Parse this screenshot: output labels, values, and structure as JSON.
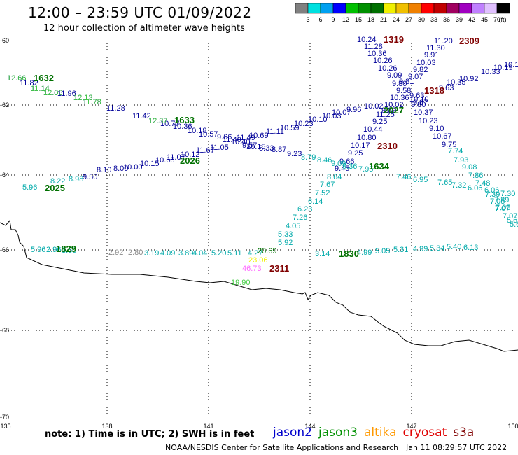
{
  "header": {
    "title": "12:00 – 23:59 UTC 01/09/2022",
    "subtitle": "12 hour collection of altimeter wave heights"
  },
  "colorbar": {
    "colors": [
      "#808080",
      "#00e0e0",
      "#00a0f0",
      "#0000ff",
      "#00c000",
      "#009000",
      "#007000",
      "#f0f000",
      "#f0c000",
      "#f08000",
      "#ff0000",
      "#c00000",
      "#a00060",
      "#a000c0",
      "#c080ff",
      "#e0c0ff",
      "#000000"
    ],
    "ticks": [
      "3",
      "6",
      "9",
      "12",
      "15",
      "18",
      "21",
      "24",
      "27",
      "30",
      "33",
      "36",
      "39",
      "42",
      "45",
      "70",
      "(ft)"
    ]
  },
  "axes": {
    "lat_labels": [
      "-60",
      "-62",
      "-64",
      "-66",
      "-68",
      "-70"
    ],
    "lon_labels": [
      "135",
      "138",
      "141",
      "144",
      "147",
      "150"
    ]
  },
  "satellites": [
    {
      "name": "jason2",
      "color": "#0000cc"
    },
    {
      "name": "jason3",
      "color": "#009000"
    },
    {
      "name": "altika",
      "color": "#ff9900"
    },
    {
      "name": "cryosat",
      "color": "#e00000"
    },
    {
      "name": "s3a",
      "color": "#800000"
    }
  ],
  "passes": [
    {
      "label": "1319",
      "color": "#800000"
    },
    {
      "label": "2309",
      "color": "#800000"
    },
    {
      "label": "1632",
      "color": "#007000"
    },
    {
      "label": "1318",
      "color": "#800000"
    },
    {
      "label": "2027",
      "color": "#007000"
    },
    {
      "label": "1633",
      "color": "#007000"
    },
    {
      "label": "2310",
      "color": "#800000"
    },
    {
      "label": "2026",
      "color": "#007000"
    },
    {
      "label": "1634",
      "color": "#007000"
    },
    {
      "label": "2025",
      "color": "#007000"
    },
    {
      "label": "1829",
      "color": "#007000"
    },
    {
      "label": "1830",
      "color": "#007000"
    },
    {
      "label": "2311",
      "color": "#800000"
    }
  ],
  "track_pass_1319_2310": {
    "color": "#000099",
    "values": [
      "10.24",
      "11.28",
      "10.36",
      "10.26",
      "10.26",
      "9.09",
      "9.80",
      "9.58",
      "10.36",
      "10.02",
      "9.89",
      "11.25",
      "9.25",
      "10.44",
      "10.80",
      "10.17",
      "9.25",
      "9.66",
      "9.45"
    ]
  },
  "track_pass_2309": {
    "color": "#000099",
    "values": [
      "11.20",
      "11.30",
      "9.91",
      "10.03",
      "9.82",
      "9.07",
      "10.10",
      "9.80",
      "10.37",
      "10.23",
      "9.10",
      "10.67",
      "9.75"
    ]
  },
  "track_pass_1318": {
    "color": "#000099",
    "values": [
      "10.17",
      "10.19",
      "10.33",
      "10.92",
      "10.35",
      "9.63"
    ]
  },
  "track_pass_1632": {
    "color": "#000099",
    "values": [
      "12.66",
      "11.82",
      "11.14",
      "12.06",
      "11.96",
      "12.13",
      "11.78",
      "11.28",
      "11.42",
      "12.37",
      "10.77",
      "10.36",
      "10.18",
      "10.57",
      "9.66",
      "10.40",
      "9.57",
      "10.15",
      "8.33",
      "8.87",
      "9.23"
    ]
  },
  "track_pass_1632_light": {
    "color": "#44cc44",
    "values": [
      "12.66",
      "11.14",
      "12.06",
      "12.13",
      "11.78",
      "12.37"
    ]
  },
  "track_pass_2026": {
    "color": "#000099",
    "values": [
      "9.50",
      "8.10",
      "8.00",
      "10.00",
      "10.15",
      "10.68",
      "11.07",
      "10.12",
      "11.67",
      "11.05",
      "11.40",
      "11.49",
      "10.69",
      "11.11",
      "10.59",
      "10.23",
      "10.10",
      "10.03",
      "10.07",
      "9.96",
      "10.02"
    ]
  },
  "track_pass_2025": {
    "color": "#00aaaa",
    "values": [
      "5.96",
      "8.22",
      "8.98",
      "8.79",
      "8.46",
      "9.09",
      "9.36",
      "7.95",
      "7.46",
      "6.95",
      "7.65",
      "7.32",
      "6.06",
      "6.06",
      "7.30",
      "7.39",
      "7.05",
      "7.07",
      "5.6"
    ]
  },
  "track_pass_1634": {
    "color": "#00aaaa",
    "values": [
      "8.64",
      "7.67",
      "7.52",
      "6.14",
      "6.23",
      "7.26",
      "4.05",
      "5.33",
      "5.92"
    ]
  },
  "track_pass_2311_right": {
    "color": "#00aaaa",
    "values": [
      "7.74",
      "7.93",
      "9.08",
      "7.86",
      "7.48",
      "7.39",
      "7.05",
      "7.07",
      "5.6"
    ]
  },
  "track_pass_1829": {
    "color": "#00aaaa",
    "values": [
      "5.96",
      "2.96",
      "3.50",
      "3.19",
      "4.09",
      "3.89",
      "4.04",
      "5.20",
      "5.11",
      "4.27"
    ]
  },
  "track_pass_1829_gray": {
    "color": "#888888",
    "values": [
      "2.92",
      "2.80"
    ]
  },
  "track_pass_1830": {
    "color": "#00aaaa",
    "values": [
      "3.14",
      "4.99",
      "5.05",
      "5.31",
      "4.99",
      "5.34",
      "5.40",
      "6.13"
    ]
  },
  "extra_values": [
    {
      "value": "20.69",
      "color": "#007000"
    },
    {
      "value": "23.06",
      "color": "#f0f000"
    },
    {
      "value": "46.73",
      "color": "#ff66ff"
    },
    {
      "value": "19.90",
      "color": "#44cc44"
    },
    {
      "value": "9.81",
      "color": "#000099"
    },
    {
      "value": "9.87",
      "color": "#000099"
    },
    {
      "value": "9.63",
      "color": "#000099"
    }
  ],
  "footer": {
    "note": "note:  1) Time is in UTC;  2) SWH is in feet",
    "credit": "NOAA/NESDIS Center for Satellite Applications and Research",
    "timestamp": "Jan 11 08:29:57 UTC 2022"
  }
}
